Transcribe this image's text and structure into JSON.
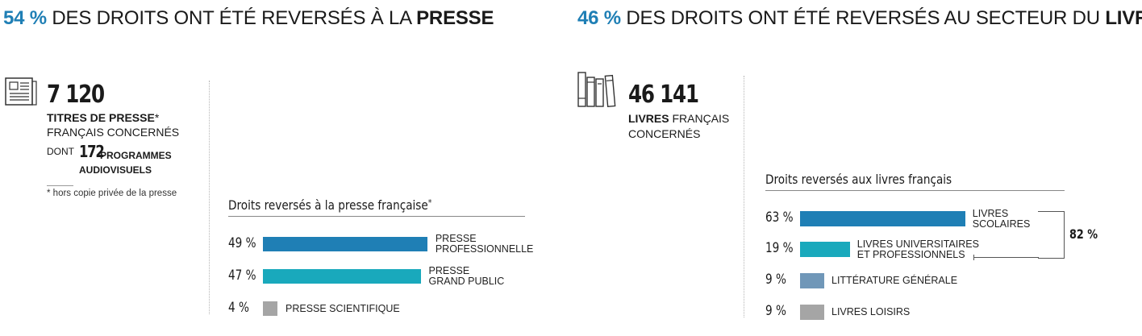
{
  "left_panel": {
    "headline": {
      "pct": "54 %",
      "text": " DES DROITS ONT ÉTÉ REVERSÉS À LA ",
      "bold": "PRESSE"
    },
    "stat_number": "7 120",
    "stat_line1_bold": "TITRES DE PRESSE",
    "stat_line1_star": "*",
    "stat_line2": "FRANÇAIS CONCERNÉS",
    "dont_label": "DONT",
    "dont_number": "172",
    "dont_text1": "PROGRAMMES",
    "dont_text2": "AUDIOVISUELS",
    "footnote": "* hors copie privée de la presse",
    "icon": "newspaper-icon"
  },
  "right_panel": {
    "headline": {
      "pct": "46 %",
      "text": " DES DROITS ONT ÉTÉ REVERSÉS AU SECTEUR DU ",
      "bold": "LIVRE"
    },
    "stat_number": "46 141",
    "stat_line1_bold": "LIVRES",
    "stat_line1_rest": " FRANÇAIS",
    "stat_line2": "CONCERNÉS",
    "icon": "books-icon",
    "bracket_label": "82 %"
  },
  "chart_data": [
    {
      "type": "bar",
      "orientation": "horizontal",
      "title": "Droits reversés à la presse française",
      "title_suffix": "*",
      "categories": [
        "PRESSE PROFESSIONNELLE",
        "PRESSE GRAND PUBLIC",
        "PRESSE SCIENTIFIQUE"
      ],
      "category_lines": [
        [
          "PRESSE",
          "PROFESSIONNELLE"
        ],
        [
          "PRESSE",
          "GRAND PUBLIC"
        ],
        [
          "PRESSE SCIENTIFIQUE"
        ]
      ],
      "values": [
        49,
        47,
        4
      ],
      "value_labels": [
        "49 %",
        "47 %",
        "4 %"
      ],
      "unit": "%",
      "colors": [
        "#1f7fb5",
        "#19a9bc",
        "#a5a5a5"
      ]
    },
    {
      "type": "bar",
      "orientation": "horizontal",
      "title": "Droits reversés aux livres français",
      "categories": [
        "LIVRES SCOLAIRES",
        "LIVRES UNIVERSITAIRES ET PROFESSIONNELS",
        "LITTÉRATURE GÉNÉRALE",
        "LIVRES LOISIRS"
      ],
      "category_lines": [
        [
          "LIVRES",
          "SCOLAIRES"
        ],
        [
          "LIVRES UNIVERSITAIRES",
          "ET PROFESSIONNELS"
        ],
        [
          "LITTÉRATURE GÉNÉRALE"
        ],
        [
          "LIVRES LOISIRS"
        ]
      ],
      "values": [
        63,
        19,
        9,
        9
      ],
      "value_labels": [
        "63 %",
        "19 %",
        "9 %",
        "9 %"
      ],
      "unit": "%",
      "colors": [
        "#1f7fb5",
        "#19a9bc",
        "#7097b8",
        "#a5a5a5"
      ],
      "annotations": [
        {
          "text": "82 %",
          "groups": [
            "LIVRES SCOLAIRES",
            "LIVRES UNIVERSITAIRES ET PROFESSIONNELS"
          ]
        }
      ]
    }
  ]
}
